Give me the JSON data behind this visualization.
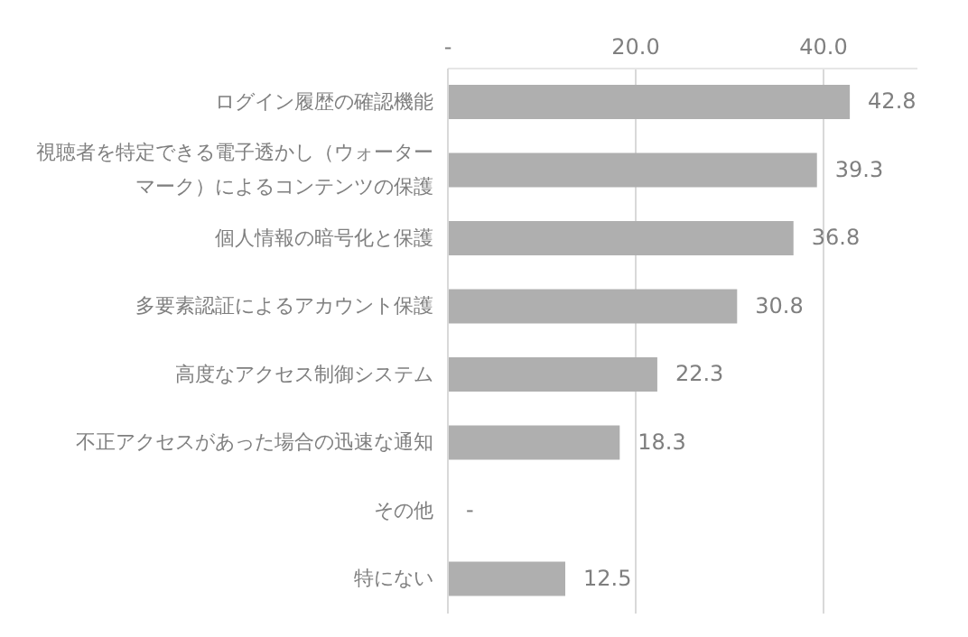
{
  "chart_data": {
    "type": "bar",
    "orientation": "horizontal",
    "categories": [
      "ログイン履歴の確認機能",
      "視聴者を特定できる電子透かし（ウォーターマーク）によるコンテンツの保護",
      "個人情報の暗号化と保護",
      "多要素認証によるアカウント保護",
      "高度なアクセス制御システム",
      "不正アクセスがあった場合の迅速な通知",
      "その他",
      "特にない"
    ],
    "values": [
      42.8,
      39.3,
      36.8,
      30.8,
      22.3,
      18.3,
      0,
      12.5
    ],
    "value_labels": [
      "42.8",
      "39.3",
      "36.8",
      "30.8",
      "22.3",
      "18.3",
      "-",
      "12.5"
    ],
    "color": "#afafaf",
    "xlim": [
      0,
      50
    ],
    "xticks": [
      {
        "value": 0,
        "label": "-"
      },
      {
        "value": 20,
        "label": "20.0"
      },
      {
        "value": 40,
        "label": "40.0"
      }
    ],
    "grid": "x"
  }
}
